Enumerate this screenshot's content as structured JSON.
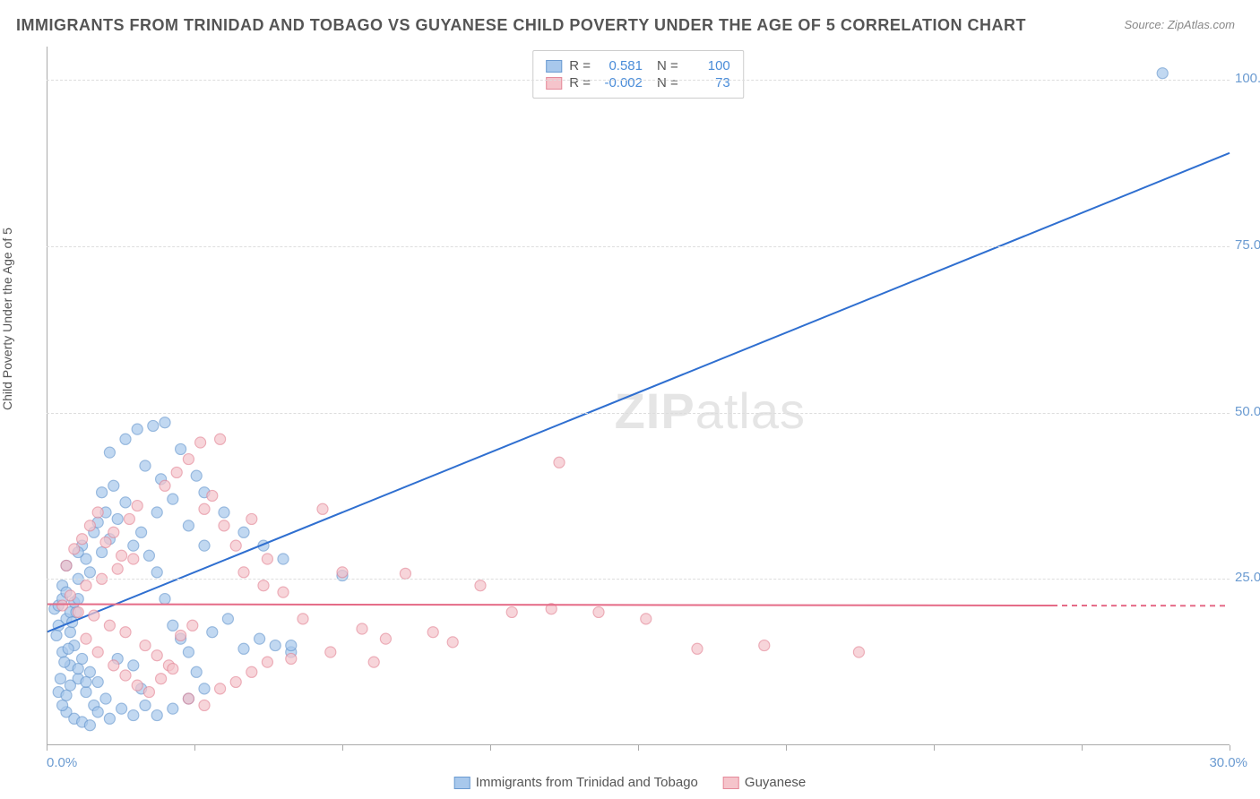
{
  "title": "IMMIGRANTS FROM TRINIDAD AND TOBAGO VS GUYANESE CHILD POVERTY UNDER THE AGE OF 5 CORRELATION CHART",
  "source": "Source: ZipAtlas.com",
  "watermark": "ZIPatlas",
  "chart": {
    "type": "scatter",
    "y_axis_label": "Child Poverty Under the Age of 5",
    "x_range": [
      0,
      30
    ],
    "y_range": [
      0,
      105
    ],
    "x_ticks": [
      0,
      3.75,
      7.5,
      11.25,
      15,
      18.75,
      22.5,
      26.25,
      30
    ],
    "y_ticks": [
      25,
      50,
      75,
      100
    ],
    "y_tick_labels": [
      "25.0%",
      "50.0%",
      "75.0%",
      "100.0%"
    ],
    "x_label_start": "0.0%",
    "x_label_end": "30.0%",
    "grid_color": "#dddddd",
    "background_color": "#ffffff",
    "series": [
      {
        "name": "Immigrants from Trinidad and Tobago",
        "color_fill": "#a8c8ec",
        "color_stroke": "#6b9bd1",
        "R": "0.581",
        "N": "100",
        "regression": {
          "x1": 0,
          "y1": 17,
          "x2": 30,
          "y2": 89,
          "color": "#2f6fd0",
          "dash_after_x": 30
        },
        "point_radius": 6,
        "points": [
          [
            0.2,
            20.5
          ],
          [
            0.3,
            21.0
          ],
          [
            0.4,
            22.0
          ],
          [
            0.5,
            19.0
          ],
          [
            0.4,
            24.0
          ],
          [
            0.6,
            20.0
          ],
          [
            0.7,
            21.5
          ],
          [
            0.8,
            22.0
          ],
          [
            0.3,
            18.0
          ],
          [
            0.5,
            23.0
          ],
          [
            0.6,
            17.0
          ],
          [
            0.8,
            25.0
          ],
          [
            0.9,
            30.0
          ],
          [
            1.0,
            28.0
          ],
          [
            1.2,
            32.0
          ],
          [
            1.1,
            26.0
          ],
          [
            1.3,
            33.5
          ],
          [
            1.4,
            29.0
          ],
          [
            1.5,
            35.0
          ],
          [
            1.6,
            31.0
          ],
          [
            0.4,
            14.0
          ],
          [
            0.6,
            12.0
          ],
          [
            0.8,
            10.0
          ],
          [
            1.0,
            8.0
          ],
          [
            1.2,
            6.0
          ],
          [
            0.7,
            15.0
          ],
          [
            0.9,
            13.0
          ],
          [
            1.1,
            11.0
          ],
          [
            1.3,
            9.5
          ],
          [
            1.5,
            7.0
          ],
          [
            1.8,
            34.0
          ],
          [
            2.0,
            36.5
          ],
          [
            2.2,
            30.0
          ],
          [
            2.4,
            32.0
          ],
          [
            2.6,
            28.5
          ],
          [
            2.8,
            26.0
          ],
          [
            3.0,
            22.0
          ],
          [
            3.2,
            18.0
          ],
          [
            3.4,
            16.0
          ],
          [
            3.6,
            14.0
          ],
          [
            0.5,
            5.0
          ],
          [
            0.7,
            4.0
          ],
          [
            0.9,
            3.5
          ],
          [
            1.1,
            3.0
          ],
          [
            2.8,
            4.5
          ],
          [
            3.2,
            5.5
          ],
          [
            3.6,
            7.0
          ],
          [
            4.0,
            8.5
          ],
          [
            1.8,
            13.0
          ],
          [
            2.2,
            12.0
          ],
          [
            1.6,
            44.0
          ],
          [
            2.0,
            46.0
          ],
          [
            2.3,
            47.5
          ],
          [
            2.7,
            48.0
          ],
          [
            2.5,
            42.0
          ],
          [
            2.9,
            40.0
          ],
          [
            1.4,
            38.0
          ],
          [
            1.7,
            39.0
          ],
          [
            0.5,
            27.0
          ],
          [
            0.8,
            29.0
          ],
          [
            2.8,
            35.0
          ],
          [
            3.2,
            37.0
          ],
          [
            3.6,
            33.0
          ],
          [
            4.0,
            30.0
          ],
          [
            4.2,
            17.0
          ],
          [
            4.6,
            19.0
          ],
          [
            5.0,
            14.5
          ],
          [
            5.4,
            16.0
          ],
          [
            5.8,
            15.0
          ],
          [
            6.2,
            14.0
          ],
          [
            3.0,
            48.5
          ],
          [
            3.4,
            44.5
          ],
          [
            3.8,
            40.5
          ],
          [
            4.0,
            38.0
          ],
          [
            4.5,
            35.0
          ],
          [
            5.0,
            32.0
          ],
          [
            5.5,
            30.0
          ],
          [
            6.0,
            28.0
          ],
          [
            7.5,
            25.5
          ],
          [
            6.2,
            15.0
          ],
          [
            0.3,
            8.0
          ],
          [
            0.4,
            6.0
          ],
          [
            0.5,
            7.5
          ],
          [
            0.6,
            9.0
          ],
          [
            0.35,
            10.0
          ],
          [
            0.45,
            12.5
          ],
          [
            0.55,
            14.5
          ],
          [
            0.25,
            16.5
          ],
          [
            0.65,
            18.5
          ],
          [
            0.75,
            20.0
          ],
          [
            1.9,
            5.5
          ],
          [
            2.2,
            4.5
          ],
          [
            2.5,
            6.0
          ],
          [
            1.3,
            5.0
          ],
          [
            1.6,
            4.0
          ],
          [
            1.0,
            9.5
          ],
          [
            0.8,
            11.5
          ],
          [
            2.4,
            8.5
          ],
          [
            3.8,
            11.0
          ],
          [
            28.3,
            101.0
          ]
        ]
      },
      {
        "name": "Guyanese",
        "color_fill": "#f5c4cb",
        "color_stroke": "#e58a9a",
        "R": "-0.002",
        "N": "73",
        "regression": {
          "x1": 0,
          "y1": 21.2,
          "x2": 25.5,
          "y2": 21.0,
          "color": "#e56b87",
          "dash_after_x": 25.5,
          "dash_to_x": 30
        },
        "point_radius": 6,
        "points": [
          [
            0.4,
            21.0
          ],
          [
            0.6,
            22.5
          ],
          [
            0.8,
            20.0
          ],
          [
            1.0,
            24.0
          ],
          [
            1.2,
            19.5
          ],
          [
            1.4,
            25.0
          ],
          [
            1.6,
            18.0
          ],
          [
            1.8,
            26.5
          ],
          [
            2.0,
            17.0
          ],
          [
            2.2,
            28.0
          ],
          [
            0.5,
            27.0
          ],
          [
            0.7,
            29.5
          ],
          [
            0.9,
            31.0
          ],
          [
            1.1,
            33.0
          ],
          [
            1.3,
            35.0
          ],
          [
            1.5,
            30.5
          ],
          [
            1.7,
            32.0
          ],
          [
            1.9,
            28.5
          ],
          [
            2.1,
            34.0
          ],
          [
            2.3,
            36.0
          ],
          [
            2.5,
            15.0
          ],
          [
            2.8,
            13.5
          ],
          [
            3.1,
            12.0
          ],
          [
            3.4,
            16.5
          ],
          [
            3.7,
            18.0
          ],
          [
            4.0,
            35.5
          ],
          [
            4.4,
            46.0
          ],
          [
            4.8,
            30.0
          ],
          [
            5.2,
            34.0
          ],
          [
            5.6,
            28.0
          ],
          [
            3.0,
            39.0
          ],
          [
            3.3,
            41.0
          ],
          [
            3.6,
            43.0
          ],
          [
            3.9,
            45.5
          ],
          [
            4.2,
            37.5
          ],
          [
            4.5,
            33.0
          ],
          [
            5.0,
            26.0
          ],
          [
            5.5,
            24.0
          ],
          [
            6.0,
            23.0
          ],
          [
            6.5,
            19.0
          ],
          [
            7.0,
            35.5
          ],
          [
            7.5,
            26.0
          ],
          [
            8.0,
            17.5
          ],
          [
            8.6,
            16.0
          ],
          [
            9.1,
            25.8
          ],
          [
            9.8,
            17.0
          ],
          [
            10.3,
            15.5
          ],
          [
            11.0,
            24.0
          ],
          [
            11.8,
            20.0
          ],
          [
            12.8,
            20.5
          ],
          [
            13.0,
            42.5
          ],
          [
            14.0,
            20.0
          ],
          [
            15.2,
            19.0
          ],
          [
            16.5,
            14.5
          ],
          [
            18.2,
            15.0
          ],
          [
            20.6,
            14.0
          ],
          [
            1.0,
            16.0
          ],
          [
            1.3,
            14.0
          ],
          [
            1.7,
            12.0
          ],
          [
            2.0,
            10.5
          ],
          [
            2.3,
            9.0
          ],
          [
            2.6,
            8.0
          ],
          [
            2.9,
            10.0
          ],
          [
            3.2,
            11.5
          ],
          [
            3.6,
            7.0
          ],
          [
            4.0,
            6.0
          ],
          [
            4.4,
            8.5
          ],
          [
            4.8,
            9.5
          ],
          [
            5.2,
            11.0
          ],
          [
            5.6,
            12.5
          ],
          [
            6.2,
            13.0
          ],
          [
            7.2,
            14.0
          ],
          [
            8.3,
            12.5
          ]
        ]
      }
    ]
  },
  "legend_top": {
    "rows": [
      {
        "swatch_fill": "#a8c8ec",
        "swatch_stroke": "#6b9bd1",
        "R_label": "R =",
        "R_val": "0.581",
        "N_label": "N =",
        "N_val": "100"
      },
      {
        "swatch_fill": "#f5c4cb",
        "swatch_stroke": "#e58a9a",
        "R_label": "R =",
        "R_val": "-0.002",
        "N_label": "N =",
        "N_val": "73"
      }
    ]
  },
  "legend_bottom": {
    "items": [
      {
        "swatch_fill": "#a8c8ec",
        "swatch_stroke": "#6b9bd1",
        "label": "Immigrants from Trinidad and Tobago"
      },
      {
        "swatch_fill": "#f5c4cb",
        "swatch_stroke": "#e58a9a",
        "label": "Guyanese"
      }
    ]
  }
}
